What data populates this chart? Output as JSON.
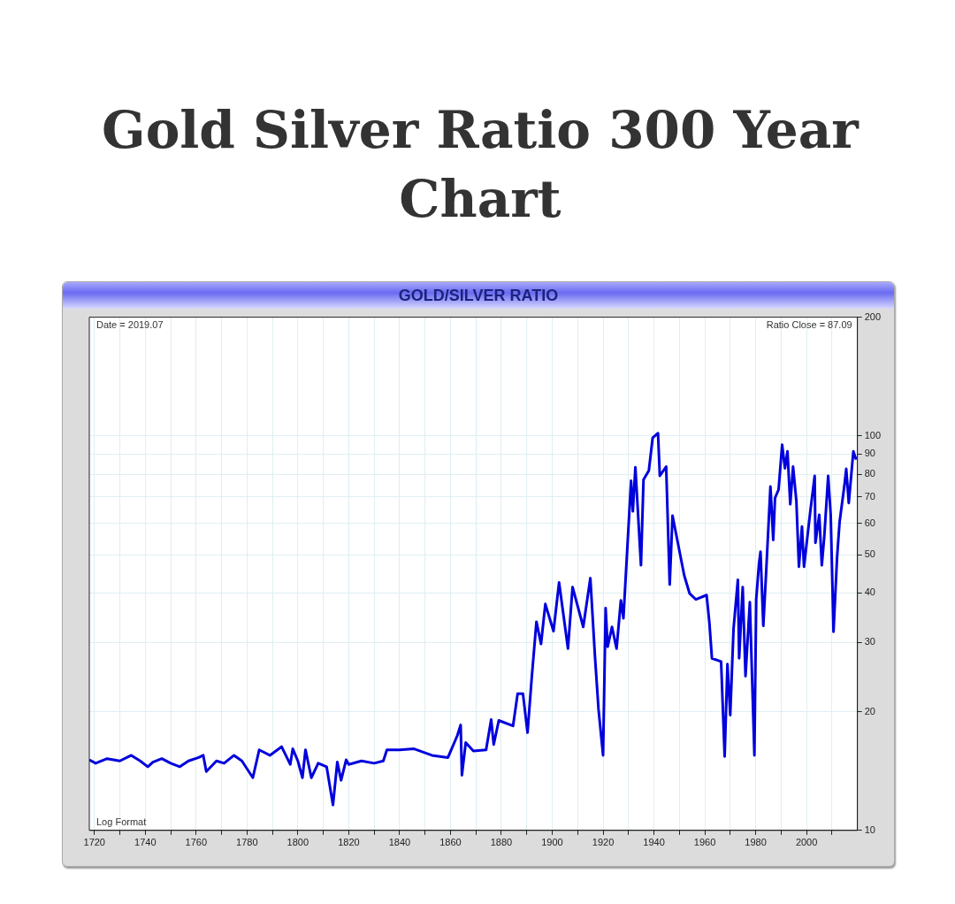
{
  "chart_data": {
    "type": "line",
    "title": "Gold Silver Ratio 300 Year Chart",
    "subtitle": "GOLD/SILVER RATIO",
    "annotations": [
      "Date = 2019.07",
      "Ratio Close = 87.09",
      "Log Format"
    ],
    "x": [
      1718,
      1720.5,
      1725,
      1730,
      1734.5,
      1738,
      1741,
      1743,
      1746.5,
      1750,
      1753.6,
      1757,
      1761,
      1762.8,
      1764,
      1768,
      1771,
      1774.9,
      1778,
      1782.3,
      1784.8,
      1789,
      1793.6,
      1797,
      1798,
      1800,
      1801.8,
      1803,
      1805.3,
      1808,
      1811.3,
      1813.8,
      1815.5,
      1817,
      1819,
      1820,
      1825,
      1830,
      1833.6,
      1835,
      1840,
      1845.7,
      1852.7,
      1859,
      1862.7,
      1864,
      1864.5,
      1866,
      1869,
      1874,
      1876,
      1877,
      1879,
      1884.6,
      1886.4,
      1888.5,
      1890.3,
      1892,
      1893.8,
      1895.6,
      1897.3,
      1900.5,
      1902.7,
      1906.2,
      1908,
      1912.2,
      1915,
      1916.8,
      1918.2,
      1920,
      1921,
      1921.8,
      1923.5,
      1925.3,
      1927,
      1928,
      1930,
      1931,
      1931.7,
      1932.7,
      1934.9,
      1935.9,
      1938,
      1939.5,
      1941.6,
      1942.3,
      1944.8,
      1946.2,
      1947.3,
      1948.7,
      1951.9,
      1954,
      1956.5,
      1960.7,
      1961.8,
      1962.8,
      1966.4,
      1967.8,
      1968.9,
      1970,
      1971.3,
      1973,
      1973.5,
      1974.9,
      1976,
      1977.7,
      1979.5,
      1980.2,
      1981.3,
      1981.9,
      1983,
      1984.1,
      1985.8,
      1986.9,
      1987.6,
      1989,
      1990.4,
      1991.5,
      1992.5,
      1993.6,
      1994.7,
      1996,
      1997,
      1998.2,
      1999,
      2001.4,
      2003.2,
      2003.5,
      2005,
      2006,
      2007,
      2008.5,
      2009.5,
      2010.6,
      2012,
      2013,
      2014.9,
      2015.6,
      2016.6,
      2018.4,
      2019.5
    ],
    "series": [
      {
        "color": "#0000dd",
        "values": [
          15.1,
          14.8,
          15.2,
          15.0,
          15.5,
          15.0,
          14.5,
          14.9,
          15.2,
          14.8,
          14.5,
          15.0,
          15.3,
          15.5,
          14.1,
          15.0,
          14.8,
          15.5,
          15.0,
          13.6,
          16.0,
          15.5,
          16.3,
          14.7,
          16.1,
          15.0,
          13.6,
          16.0,
          13.6,
          14.8,
          14.5,
          11.6,
          14.9,
          13.4,
          15.1,
          14.7,
          15.0,
          14.8,
          15.0,
          16.0,
          16.0,
          16.1,
          15.5,
          15.3,
          17.4,
          18.5,
          13.8,
          16.7,
          15.9,
          16.0,
          19.1,
          16.5,
          19.0,
          18.4,
          22.2,
          22.2,
          17.7,
          24.6,
          33.8,
          29.7,
          37.5,
          32.0,
          42.5,
          28.9,
          41.4,
          32.8,
          43.6,
          27.7,
          20.3,
          15.5,
          36.6,
          29.2,
          32.8,
          28.9,
          38.3,
          34.5,
          58.9,
          77.0,
          64.4,
          83.3,
          47.0,
          77.5,
          81.7,
          99.0,
          101.6,
          79.2,
          83.6,
          42.0,
          62.8,
          56.5,
          44.3,
          39.9,
          38.5,
          39.5,
          33.6,
          27.3,
          26.8,
          15.4,
          26.4,
          19.6,
          32.5,
          43.2,
          27.3,
          41.4,
          24.6,
          37.9,
          15.5,
          38.5,
          47.4,
          50.9,
          33.0,
          45.0,
          74.4,
          54.5,
          69.6,
          73.1,
          95.0,
          82.8,
          91.4,
          67.1,
          83.6,
          68.3,
          46.6,
          58.9,
          46.6,
          63.8,
          79.2,
          53.6,
          63.1,
          47.0,
          55.9,
          79.2,
          63.1,
          31.9,
          49.2,
          60.6,
          75.0,
          82.5,
          67.6,
          91.4,
          87.09
        ]
      }
    ],
    "xlim": [
      1718,
      2020
    ],
    "xticks": [
      1720,
      {
        "value": 1730,
        "label": null
      },
      1740,
      {
        "value": 1750,
        "label": null
      },
      1760,
      {
        "value": 1770,
        "label": null
      },
      1780,
      {
        "value": 1790,
        "label": null
      },
      1800,
      {
        "value": 1810,
        "label": null
      },
      1820,
      {
        "value": 1830,
        "label": null
      },
      1840,
      {
        "value": 1850,
        "label": null
      },
      1860,
      {
        "value": 1870,
        "label": null
      },
      1880,
      {
        "value": 1890,
        "label": null
      },
      1900,
      {
        "value": 1910,
        "label": null
      },
      1920,
      {
        "value": 1930,
        "label": null
      },
      1940,
      {
        "value": 1950,
        "label": null
      },
      1960,
      {
        "value": 1970,
        "label": null
      },
      1980,
      {
        "value": 1990,
        "label": null
      },
      2000,
      {
        "value": 2010,
        "label": null
      }
    ],
    "ylim": [
      10,
      200
    ],
    "yticks": [
      10,
      20,
      30,
      40,
      50,
      60,
      70,
      80,
      90,
      100,
      200
    ],
    "log": "y",
    "grid": true,
    "marker": "none",
    "line_style": "solid"
  }
}
